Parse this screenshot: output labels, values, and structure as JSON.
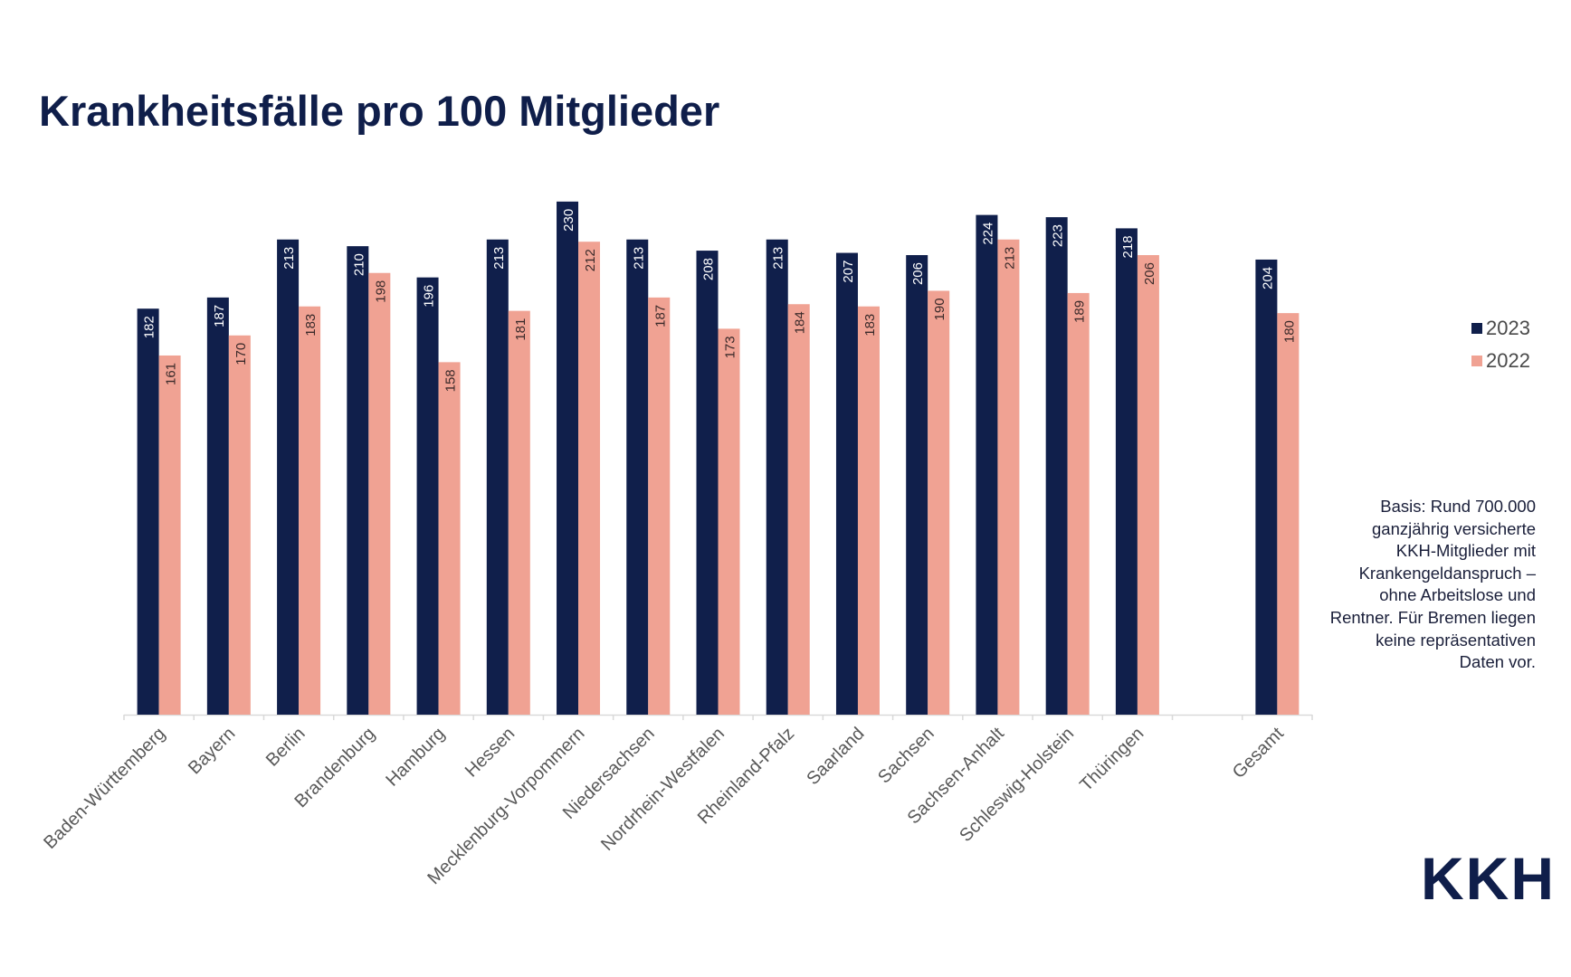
{
  "logo": "KKH",
  "note": "Basis: Rund 700.000 ganzjährig versicherte KKH-Mitglieder mit Krankengeldanspruch – ohne Arbeitslose und Rentner. Für Bremen liegen keine repräsentativen Daten vor.",
  "colors": {
    "2023": "#101f4b",
    "2022": "#f0a293",
    "axis": "#d9d9d9",
    "tick_label": "#595959"
  },
  "chart_data": {
    "type": "bar",
    "title": "Krankheitsfälle pro 100 Mitglieder",
    "xlabel": "",
    "ylabel": "",
    "ylim": [
      0,
      230
    ],
    "grid": false,
    "legend_position": "right",
    "categories": [
      "Baden-Württemberg",
      "Bayern",
      "Berlin",
      "Brandenburg",
      "Hamburg",
      "Hessen",
      "Mecklenburg-Vorpommern",
      "Niedersachsen",
      "Nordrhein-Westfalen",
      "Rheinland-Pfalz",
      "Saarland",
      "Sachsen",
      "Sachsen-Anhalt",
      "Schleswig-Holstein",
      "Thüringen",
      "",
      "Gesamt"
    ],
    "series": [
      {
        "name": "2023",
        "values": [
          182,
          187,
          213,
          210,
          196,
          213,
          230,
          213,
          208,
          213,
          207,
          206,
          224,
          223,
          218,
          null,
          204
        ]
      },
      {
        "name": "2022",
        "values": [
          161,
          170,
          183,
          198,
          158,
          181,
          212,
          187,
          173,
          184,
          183,
          190,
          213,
          189,
          206,
          null,
          180
        ]
      }
    ]
  }
}
